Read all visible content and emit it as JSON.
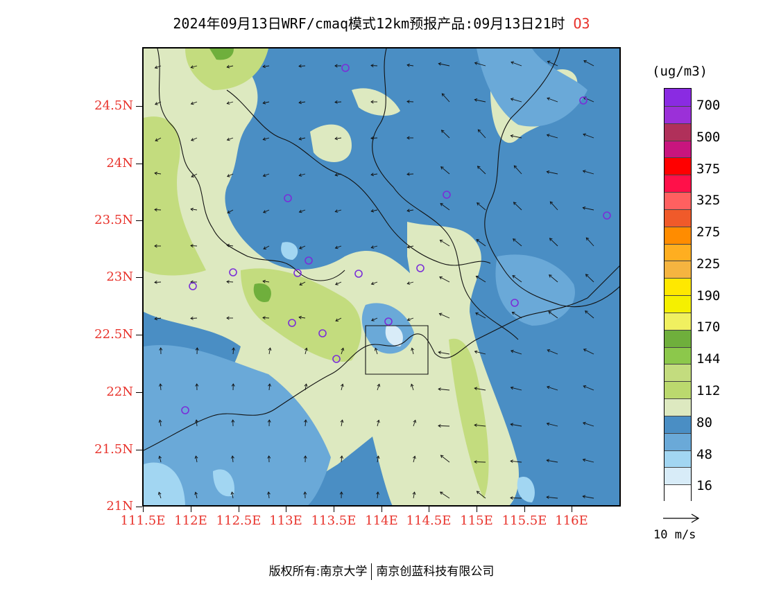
{
  "title": {
    "main": "2024年09月13日WRF/cmaq模式12km预报产品:09月13日21时",
    "pollutant": "O3"
  },
  "map": {
    "lat_labels": [
      "24.5N",
      "24N",
      "23.5N",
      "23N",
      "22.5N",
      "22N",
      "21.5N",
      "21N"
    ],
    "lon_labels": [
      "111.5E",
      "112E",
      "112.5E",
      "113E",
      "113.5E",
      "114E",
      "114.5E",
      "115E",
      "115.5E",
      "116E"
    ],
    "colors": {
      "c16": "#ffffff",
      "c32": "#d8ecf8",
      "c48": "#a2d6f2",
      "c64": "#6aa9d8",
      "c80": "#4a8ec4",
      "c96": "#dde9c0",
      "c112": "#c3dc7e",
      "c128": "#a8cf5a",
      "c144": "#6faf3c",
      "station": "#7a2ed8"
    }
  },
  "colorbar": {
    "unit": "(ug/m3)",
    "labels": [
      "700",
      "500",
      "375",
      "325",
      "275",
      "225",
      "190",
      "170",
      "144",
      "112",
      "80",
      "48",
      "16"
    ],
    "colors_top_to_bottom": [
      "#8a2be2",
      "#9b30d8",
      "#b0305a",
      "#c8157e",
      "#ff0000",
      "#ff1049",
      "#ff6060",
      "#f05a2a",
      "#ff8c00",
      "#ffae20",
      "#f5b440",
      "#ffe800",
      "#f5f000",
      "#f0f060",
      "#6faf3c",
      "#8cc84b",
      "#c3dc7e",
      "#bbd96e",
      "#dde9c0",
      "#4a8ec4",
      "#6aa9d8",
      "#a2d6f2",
      "#d8ecf8",
      "#ffffff"
    ]
  },
  "wind_reference": {
    "label": "10 m/s"
  },
  "footer": {
    "left": "版权所有:南京大学",
    "right": "南京创蓝科技有限公司"
  }
}
